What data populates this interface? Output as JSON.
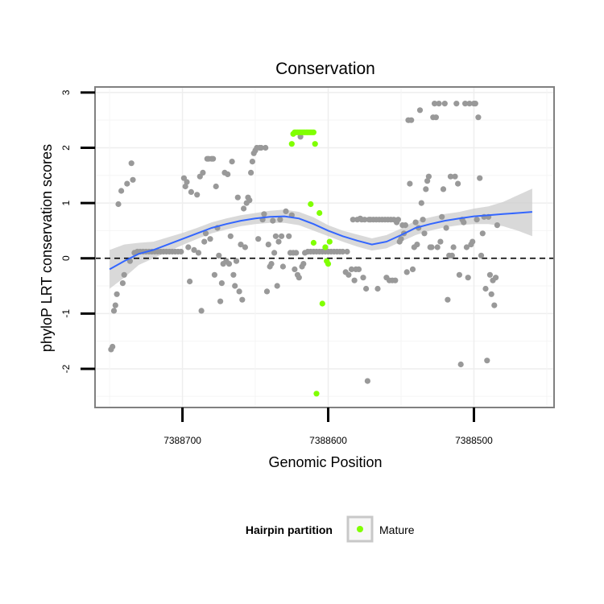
{
  "chart_data": {
    "type": "scatter",
    "title": "Conservation",
    "xlabel": "Genomic Position",
    "ylabel": "phyloP LRT conservation scores",
    "x_reversed": true,
    "xlim": [
      7388760,
      7388445
    ],
    "ylim": [
      -2.7,
      3.1
    ],
    "x_ticks": [
      7388700,
      7388600,
      7388500
    ],
    "x_tick_labels": [
      "7388700",
      "7388600",
      "7388500"
    ],
    "y_ticks": [
      -2,
      -1,
      0,
      1,
      2,
      3
    ],
    "y_tick_labels": [
      "-2",
      "-1",
      "0",
      "1",
      "2",
      "3"
    ],
    "grid": true,
    "reference_line": {
      "y": 0,
      "style": "dashed"
    },
    "legend": {
      "title": "Hairpin partition",
      "placement": "bottom",
      "entries": [
        {
          "label": "Mature",
          "color": "#80ff00"
        }
      ]
    },
    "colors": {
      "points": "#999999",
      "mature": "#80ff00",
      "smooth": "#3366ff",
      "band": "#cccccc",
      "frame": "#808080"
    },
    "series": [
      {
        "kind": "points",
        "color": "#999999",
        "points": [
          [
            7388749,
            -1.65
          ],
          [
            7388748,
            -1.6
          ],
          [
            7388747,
            -0.95
          ],
          [
            7388746,
            -0.85
          ],
          [
            7388745,
            -0.65
          ],
          [
            7388744,
            0.98
          ],
          [
            7388742,
            1.22
          ],
          [
            7388741,
            -0.45
          ],
          [
            7388740,
            -0.3
          ],
          [
            7388738,
            1.35
          ],
          [
            7388736,
            -0.05
          ],
          [
            7388735,
            1.72
          ],
          [
            7388734,
            1.42
          ],
          [
            7388733,
            0.1
          ],
          [
            7388731,
            0.12
          ],
          [
            7388729,
            0.12
          ],
          [
            7388727,
            0.12
          ],
          [
            7388725,
            0.12
          ],
          [
            7388723,
            0.12
          ],
          [
            7388721,
            0.12
          ],
          [
            7388719,
            0.12
          ],
          [
            7388717,
            0.12
          ],
          [
            7388715,
            0.12
          ],
          [
            7388713,
            0.12
          ],
          [
            7388711,
            0.12
          ],
          [
            7388709,
            0.12
          ],
          [
            7388707,
            0.12
          ],
          [
            7388705,
            0.12
          ],
          [
            7388703,
            0.12
          ],
          [
            7388701,
            0.12
          ],
          [
            7388699,
            1.45
          ],
          [
            7388698,
            1.3
          ],
          [
            7388697,
            1.38
          ],
          [
            7388696,
            0.2
          ],
          [
            7388695,
            -0.42
          ],
          [
            7388694,
            1.2
          ],
          [
            7388692,
            0.15
          ],
          [
            7388690,
            1.15
          ],
          [
            7388689,
            0.1
          ],
          [
            7388688,
            1.48
          ],
          [
            7388687,
            -0.95
          ],
          [
            7388686,
            1.55
          ],
          [
            7388685,
            0.3
          ],
          [
            7388684,
            0.45
          ],
          [
            7388683,
            1.8
          ],
          [
            7388682,
            1.8
          ],
          [
            7388681,
            0.35
          ],
          [
            7388680,
            1.8
          ],
          [
            7388679,
            1.8
          ],
          [
            7388678,
            -0.3
          ],
          [
            7388677,
            1.3
          ],
          [
            7388676,
            0.55
          ],
          [
            7388675,
            0.05
          ],
          [
            7388674,
            -0.78
          ],
          [
            7388673,
            -0.45
          ],
          [
            7388672,
            -0.1
          ],
          [
            7388671,
            1.55
          ],
          [
            7388670,
            -0.05
          ],
          [
            7388669,
            1.52
          ],
          [
            7388668,
            -0.1
          ],
          [
            7388667,
            0.4
          ],
          [
            7388666,
            1.75
          ],
          [
            7388665,
            -0.3
          ],
          [
            7388664,
            -0.5
          ],
          [
            7388663,
            -0.05
          ],
          [
            7388662,
            1.1
          ],
          [
            7388661,
            -0.6
          ],
          [
            7388660,
            0.25
          ],
          [
            7388659,
            -0.75
          ],
          [
            7388658,
            0.9
          ],
          [
            7388657,
            0.2
          ],
          [
            7388656,
            1.0
          ],
          [
            7388655,
            1.1
          ],
          [
            7388654,
            1.05
          ],
          [
            7388653,
            1.55
          ],
          [
            7388652,
            1.75
          ],
          [
            7388651,
            1.9
          ],
          [
            7388650,
            1.95
          ],
          [
            7388649,
            2.0
          ],
          [
            7388648,
            0.35
          ],
          [
            7388647,
            2.0
          ],
          [
            7388646,
            2.0
          ],
          [
            7388645,
            0.7
          ],
          [
            7388644,
            0.8
          ],
          [
            7388643,
            2.0
          ],
          [
            7388642,
            -0.6
          ],
          [
            7388641,
            0.25
          ],
          [
            7388640,
            -0.15
          ],
          [
            7388639,
            -0.1
          ],
          [
            7388638,
            0.68
          ],
          [
            7388637,
            0.1
          ],
          [
            7388636,
            0.4
          ],
          [
            7388635,
            -0.5
          ],
          [
            7388634,
            0.3
          ],
          [
            7388633,
            0.7
          ],
          [
            7388632,
            0.4
          ],
          [
            7388631,
            -0.15
          ],
          [
            7388629,
            0.85
          ],
          [
            7388627,
            0.4
          ],
          [
            7388626,
            0.1
          ],
          [
            7388625,
            0.78
          ],
          [
            7388624,
            0.1
          ],
          [
            7388623,
            -0.2
          ],
          [
            7388622,
            0.1
          ],
          [
            7388621,
            -0.3
          ],
          [
            7388620,
            -0.35
          ],
          [
            7388619,
            2.2
          ],
          [
            7388618,
            -0.15
          ],
          [
            7388617,
            -0.1
          ],
          [
            7388616,
            0.1
          ],
          [
            7388614,
            0.12
          ],
          [
            7388612,
            0.12
          ],
          [
            7388610,
            0.12
          ],
          [
            7388608,
            0.12
          ],
          [
            7388606,
            0.12
          ],
          [
            7388604,
            0.12
          ],
          [
            7388602,
            0.12
          ],
          [
            7388600,
            0.12
          ],
          [
            7388598,
            0.12
          ],
          [
            7388596,
            0.12
          ],
          [
            7388594,
            0.12
          ],
          [
            7388592,
            0.12
          ],
          [
            7388590,
            0.12
          ],
          [
            7388588,
            -0.25
          ],
          [
            7388587,
            0.12
          ],
          [
            7388586,
            -0.3
          ],
          [
            7388584,
            -0.2
          ],
          [
            7388583,
            0.7
          ],
          [
            7388582,
            -0.4
          ],
          [
            7388581,
            -0.2
          ],
          [
            7388580,
            0.7
          ],
          [
            7388579,
            -0.2
          ],
          [
            7388578,
            0.72
          ],
          [
            7388577,
            0.7
          ],
          [
            7388576,
            -0.35
          ],
          [
            7388575,
            0.7
          ],
          [
            7388574,
            -0.55
          ],
          [
            7388573,
            -2.22
          ],
          [
            7388572,
            0.7
          ],
          [
            7388571,
            0.7
          ],
          [
            7388569,
            0.7
          ],
          [
            7388567,
            0.7
          ],
          [
            7388566,
            -0.55
          ],
          [
            7388565,
            0.7
          ],
          [
            7388563,
            0.7
          ],
          [
            7388561,
            0.7
          ],
          [
            7388560,
            -0.35
          ],
          [
            7388559,
            0.7
          ],
          [
            7388558,
            -0.4
          ],
          [
            7388557,
            0.7
          ],
          [
            7388556,
            -0.4
          ],
          [
            7388555,
            0.7
          ],
          [
            7388554,
            -0.4
          ],
          [
            7388553,
            0.65
          ],
          [
            7388552,
            0.7
          ],
          [
            7388551,
            0.3
          ],
          [
            7388550,
            0.35
          ],
          [
            7388549,
            0.6
          ],
          [
            7388548,
            0.45
          ],
          [
            7388547,
            0.6
          ],
          [
            7388546,
            -0.25
          ],
          [
            7388545,
            2.5
          ],
          [
            7388544,
            1.35
          ],
          [
            7388543,
            2.5
          ],
          [
            7388542,
            -0.2
          ],
          [
            7388541,
            0.2
          ],
          [
            7388540,
            0.65
          ],
          [
            7388539,
            0.25
          ],
          [
            7388538,
            0.55
          ],
          [
            7388537,
            2.68
          ],
          [
            7388536,
            1.0
          ],
          [
            7388535,
            0.7
          ],
          [
            7388534,
            0.45
          ],
          [
            7388533,
            1.25
          ],
          [
            7388532,
            1.4
          ],
          [
            7388531,
            1.48
          ],
          [
            7388530,
            0.2
          ],
          [
            7388529,
            0.2
          ],
          [
            7388528,
            2.55
          ],
          [
            7388527,
            2.8
          ],
          [
            7388526,
            2.55
          ],
          [
            7388525,
            0.2
          ],
          [
            7388524,
            2.8
          ],
          [
            7388523,
            0.3
          ],
          [
            7388522,
            0.75
          ],
          [
            7388521,
            1.25
          ],
          [
            7388520,
            2.8
          ],
          [
            7388519,
            0.55
          ],
          [
            7388518,
            -0.75
          ],
          [
            7388517,
            0.05
          ],
          [
            7388516,
            1.48
          ],
          [
            7388515,
            0.05
          ],
          [
            7388514,
            0.2
          ],
          [
            7388513,
            1.48
          ],
          [
            7388512,
            2.8
          ],
          [
            7388511,
            1.35
          ],
          [
            7388510,
            -0.3
          ],
          [
            7388509,
            -1.92
          ],
          [
            7388508,
            0.7
          ],
          [
            7388507,
            0.65
          ],
          [
            7388506,
            2.8
          ],
          [
            7388505,
            0.2
          ],
          [
            7388504,
            -0.35
          ],
          [
            7388503,
            2.8
          ],
          [
            7388502,
            0.25
          ],
          [
            7388501,
            0.3
          ],
          [
            7388500,
            2.8
          ],
          [
            7388499,
            2.8
          ],
          [
            7388498,
            0.7
          ],
          [
            7388497,
            2.55
          ],
          [
            7388496,
            1.45
          ],
          [
            7388495,
            0.05
          ],
          [
            7388494,
            0.45
          ],
          [
            7388493,
            0.75
          ],
          [
            7388492,
            -0.55
          ],
          [
            7388491,
            -1.85
          ],
          [
            7388490,
            0.75
          ],
          [
            7388489,
            -0.3
          ],
          [
            7388488,
            -0.65
          ],
          [
            7388487,
            -0.4
          ],
          [
            7388486,
            -0.85
          ],
          [
            7388485,
            -0.35
          ],
          [
            7388484,
            0.6
          ]
        ]
      },
      {
        "name": "Mature",
        "kind": "points",
        "color": "#80ff00",
        "points": [
          [
            7388625,
            2.07
          ],
          [
            7388624,
            2.25
          ],
          [
            7388623,
            2.28
          ],
          [
            7388622,
            2.28
          ],
          [
            7388621,
            2.28
          ],
          [
            7388620,
            2.28
          ],
          [
            7388619,
            2.28
          ],
          [
            7388618,
            2.28
          ],
          [
            7388617,
            2.28
          ],
          [
            7388616,
            2.28
          ],
          [
            7388615,
            2.28
          ],
          [
            7388614,
            2.28
          ],
          [
            7388613,
            2.28
          ],
          [
            7388612,
            2.28
          ],
          [
            7388611,
            2.28
          ],
          [
            7388610,
            2.28
          ],
          [
            7388609,
            2.07
          ],
          [
            7388612,
            0.98
          ],
          [
            7388610,
            0.28
          ],
          [
            7388608,
            -2.45
          ],
          [
            7388606,
            0.82
          ],
          [
            7388604,
            -0.82
          ],
          [
            7388602,
            0.2
          ],
          [
            7388601,
            -0.05
          ],
          [
            7388600,
            -0.1
          ],
          [
            7388599,
            0.3
          ]
        ]
      },
      {
        "kind": "smooth",
        "color": "#3366ff",
        "x": [
          7388750,
          7388740,
          7388730,
          7388720,
          7388710,
          7388700,
          7388690,
          7388680,
          7388670,
          7388660,
          7388650,
          7388640,
          7388630,
          7388620,
          7388610,
          7388600,
          7388590,
          7388580,
          7388570,
          7388560,
          7388550,
          7388540,
          7388530,
          7388520,
          7388510,
          7388500,
          7388490,
          7388480,
          7388470,
          7388460
        ],
        "y": [
          -0.2,
          -0.05,
          0.08,
          0.15,
          0.25,
          0.35,
          0.45,
          0.55,
          0.62,
          0.68,
          0.72,
          0.75,
          0.76,
          0.72,
          0.62,
          0.5,
          0.4,
          0.32,
          0.25,
          0.3,
          0.42,
          0.55,
          0.62,
          0.68,
          0.72,
          0.76,
          0.78,
          0.8,
          0.82,
          0.84
        ],
        "band_lo": [
          -0.55,
          -0.35,
          -0.12,
          0.0,
          0.12,
          0.24,
          0.35,
          0.45,
          0.52,
          0.58,
          0.62,
          0.64,
          0.64,
          0.6,
          0.5,
          0.4,
          0.3,
          0.21,
          0.14,
          0.18,
          0.3,
          0.42,
          0.5,
          0.56,
          0.6,
          0.62,
          0.62,
          0.58,
          0.5,
          0.4
        ],
        "band_hi": [
          0.15,
          0.25,
          0.28,
          0.3,
          0.38,
          0.46,
          0.55,
          0.65,
          0.72,
          0.78,
          0.82,
          0.86,
          0.88,
          0.84,
          0.74,
          0.6,
          0.5,
          0.43,
          0.36,
          0.42,
          0.54,
          0.68,
          0.74,
          0.8,
          0.84,
          0.9,
          0.94,
          1.02,
          1.14,
          1.26
        ]
      }
    ]
  }
}
